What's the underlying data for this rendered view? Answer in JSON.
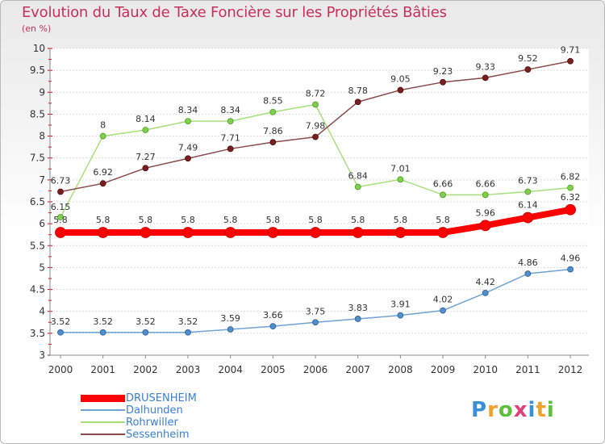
{
  "title": "Evolution du Taux de Taxe Foncière sur les Propriétés Bâties",
  "subtitle": "(en %)",
  "logo_text": "Proxiti",
  "chart_data": {
    "type": "line",
    "title": "Evolution du Taux de Taxe Foncière sur les Propriétés Bâties",
    "subtitle": "(en %)",
    "xlabel": "",
    "ylabel": "",
    "x": [
      "2000",
      "2001",
      "2002",
      "2003",
      "2004",
      "2005",
      "2006",
      "2007",
      "2008",
      "2009",
      "2010",
      "2011",
      "2012"
    ],
    "ylim": [
      3,
      10
    ],
    "yticks": [
      "3",
      "3.5",
      "4",
      "4.5",
      "5",
      "5.5",
      "6",
      "6.5",
      "7",
      "7.5",
      "8",
      "8.5",
      "9",
      "9.5",
      "10"
    ],
    "grid": "horizontal",
    "legend_position": "bottom-left",
    "series": [
      {
        "name": "DRUSENHEIM",
        "color": "#ff0000",
        "values": [
          5.8,
          5.8,
          5.8,
          5.8,
          5.8,
          5.8,
          5.8,
          5.8,
          5.8,
          5.8,
          5.96,
          6.14,
          6.32
        ],
        "labels": [
          "5.8",
          "5.8",
          "5.8",
          "5.8",
          "5.8",
          "5.8",
          "5.8",
          "5.8",
          "5.8",
          "5.8",
          "5.96",
          "6.14",
          "6.32"
        ]
      },
      {
        "name": "Dalhunden",
        "color": "#6fa3d3",
        "values": [
          3.52,
          3.52,
          3.52,
          3.52,
          3.59,
          3.66,
          3.75,
          3.83,
          3.91,
          4.02,
          4.42,
          4.86,
          4.96
        ],
        "labels": [
          "3.52",
          "3.52",
          "3.52",
          "3.52",
          "3.59",
          "3.66",
          "3.75",
          "3.83",
          "3.91",
          "4.02",
          "4.42",
          "4.86",
          "4.96"
        ]
      },
      {
        "name": "Rohrwiller",
        "color": "#a6e07a",
        "values": [
          6.15,
          8,
          8.14,
          8.34,
          8.34,
          8.55,
          8.72,
          6.84,
          7.01,
          6.66,
          6.66,
          6.73,
          6.82
        ],
        "labels": [
          "6.15",
          "8",
          "8.14",
          "8.34",
          "8.34",
          "8.55",
          "8.72",
          "6.84",
          "7.01",
          "6.66",
          "6.66",
          "6.73",
          "6.82"
        ]
      },
      {
        "name": "Sessenheim",
        "color": "#8a4a4a",
        "values": [
          6.73,
          6.92,
          7.27,
          7.49,
          7.71,
          7.86,
          7.98,
          8.78,
          9.05,
          9.23,
          9.33,
          9.52,
          9.71
        ],
        "labels": [
          "6.73",
          "6.92",
          "7.27",
          "7.49",
          "7.71",
          "7.86",
          "7.98",
          "8.78",
          "9.05",
          "9.23",
          "9.33",
          "9.52",
          "9.71"
        ]
      }
    ]
  }
}
